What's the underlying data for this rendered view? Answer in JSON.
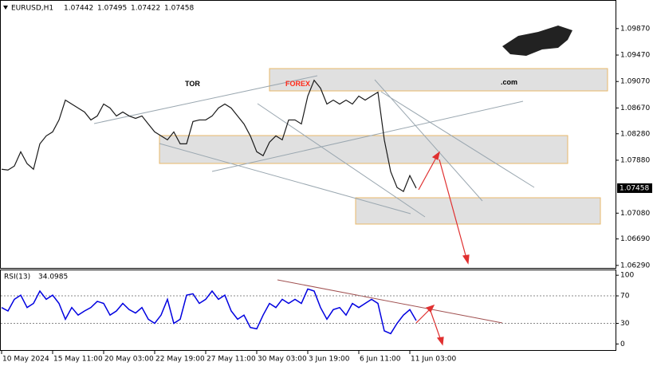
{
  "logo": {
    "part1": "TOR",
    "part2": "FOREX",
    "part3": ".com"
  },
  "chart_data": [
    {
      "type": "line",
      "title": "EURUSD,H1",
      "ohlc": [
        1.07442,
        1.07495,
        1.07422,
        1.07458
      ],
      "last": 1.07458,
      "color": "#1a1a1a",
      "categories": [
        "10 May 2024",
        null,
        null,
        null,
        null,
        null,
        null,
        null,
        "15 May 11:00",
        null,
        null,
        null,
        null,
        null,
        null,
        null,
        "20 May 03:00",
        null,
        null,
        null,
        null,
        null,
        null,
        null,
        "22 May 19:00",
        null,
        null,
        null,
        null,
        null,
        null,
        null,
        "27 May 11:00",
        null,
        null,
        null,
        null,
        null,
        null,
        null,
        "30 May 03:00",
        null,
        null,
        null,
        null,
        null,
        null,
        null,
        "3 Jun 19:00",
        null,
        null,
        null,
        null,
        null,
        null,
        null,
        "6 Jun 11:00",
        null,
        null,
        null,
        null,
        null,
        null,
        null,
        "11 Jun 03:00",
        null
      ],
      "values": [
        1.07744,
        1.07732,
        1.07792,
        1.08008,
        1.07828,
        1.07744,
        1.08128,
        1.08248,
        1.08308,
        1.08489,
        1.08789,
        1.08729,
        1.08669,
        1.08609,
        1.08489,
        1.08549,
        1.08729,
        1.08669,
        1.08549,
        1.08609,
        1.08549,
        1.08513,
        1.08549,
        1.08428,
        1.08308,
        1.08248,
        1.08188,
        1.08308,
        1.08128,
        1.08128,
        1.08465,
        1.08489,
        1.08489,
        1.08549,
        1.08669,
        1.08729,
        1.08669,
        1.08549,
        1.08428,
        1.08248,
        1.08008,
        1.07948,
        1.08152,
        1.08248,
        1.08188,
        1.08489,
        1.08489,
        1.08428,
        1.08849,
        1.09089,
        1.08969,
        1.08729,
        1.08789,
        1.08729,
        1.08789,
        1.08729,
        1.08849,
        1.08789,
        1.08849,
        1.08909,
        1.08188,
        1.07708,
        1.07468,
        1.07408,
        1.07648,
        1.07458
      ],
      "ylim": [
        1.0624,
        1.1029
      ],
      "yticks": [
        {
          "value": 1.0987,
          "label": "1.09870"
        },
        {
          "value": 1.0947,
          "label": "1.09470"
        },
        {
          "value": 1.0907,
          "label": "1.09070"
        },
        {
          "value": 1.0867,
          "label": "1.08670"
        },
        {
          "value": 1.0828,
          "label": "1.08280"
        },
        {
          "value": 1.0788,
          "label": "1.07880"
        },
        {
          "value": 1.0708,
          "label": "1.07080"
        },
        {
          "value": 1.0669,
          "label": "1.06690"
        },
        {
          "value": 1.0629,
          "label": "1.06290"
        }
      ]
    },
    {
      "type": "line",
      "title": "RSI(13)",
      "last": 34.0985,
      "color": "#0000e0",
      "values": [
        53,
        48,
        65,
        71,
        53,
        59,
        77,
        65,
        71,
        59,
        36,
        53,
        42,
        48,
        53,
        62,
        59,
        42,
        48,
        59,
        50,
        45,
        53,
        36,
        30,
        42,
        65,
        30,
        36,
        71,
        73,
        59,
        65,
        77,
        65,
        71,
        48,
        36,
        42,
        24,
        22,
        42,
        59,
        53,
        65,
        59,
        65,
        59,
        80,
        77,
        53,
        36,
        50,
        53,
        42,
        59,
        53,
        59,
        65,
        59,
        19,
        15,
        30,
        42,
        50,
        34.0985
      ],
      "ylim": [
        -10,
        106
      ],
      "yticks": [
        100,
        70,
        30,
        0
      ]
    }
  ]
}
